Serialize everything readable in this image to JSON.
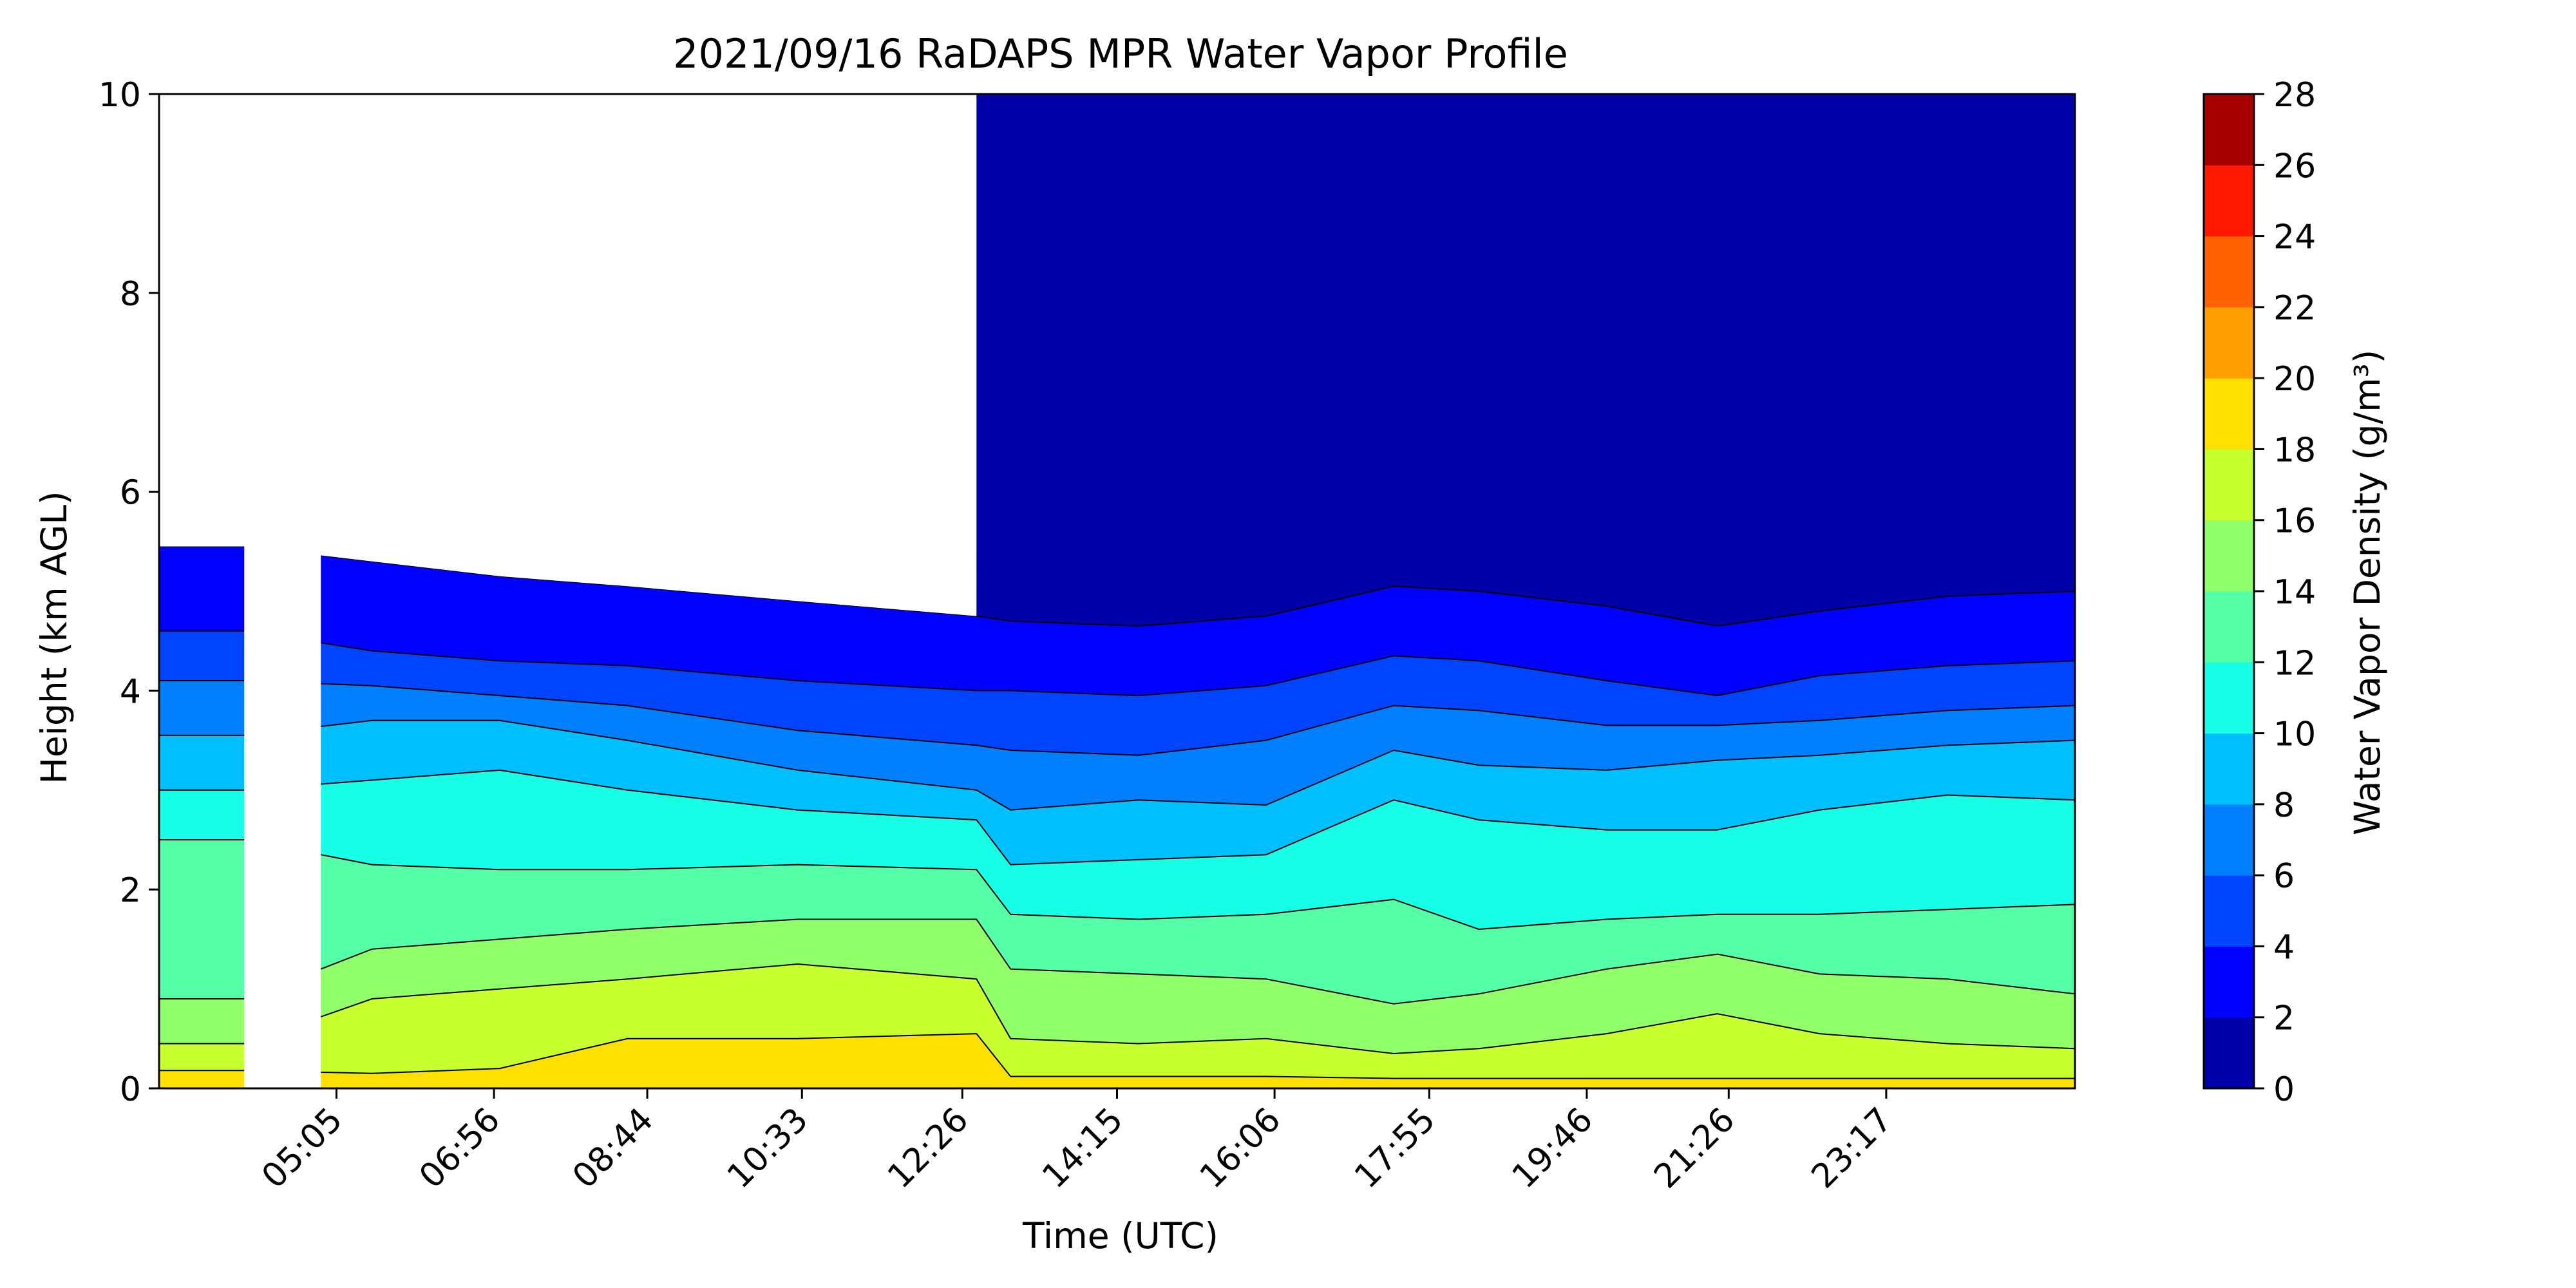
{
  "chart_data": {
    "type": "heatmap",
    "subtype": "filled-contour",
    "title": "2021/09/16 RaDAPS MPR Water Vapor Profile",
    "xlabel": "Time (UTC)",
    "ylabel": "Height (km AGL)",
    "ylim": [
      0,
      10
    ],
    "yticks": [
      0,
      2,
      4,
      6,
      8,
      10
    ],
    "xlim_hours": [
      3.0,
      25.5
    ],
    "xticks": [
      {
        "label": "05:05",
        "hour": 5.0833
      },
      {
        "label": "06:56",
        "hour": 6.9333
      },
      {
        "label": "08:44",
        "hour": 8.7333
      },
      {
        "label": "10:33",
        "hour": 10.55
      },
      {
        "label": "12:26",
        "hour": 12.4333
      },
      {
        "label": "14:15",
        "hour": 14.25
      },
      {
        "label": "16:06",
        "hour": 16.1
      },
      {
        "label": "17:55",
        "hour": 17.9167
      },
      {
        "label": "19:46",
        "hour": 19.7667
      },
      {
        "label": "21:26",
        "hour": 21.4333
      },
      {
        "label": "23:17",
        "hour": 23.2833
      }
    ],
    "colorbar": {
      "label": "Water Vapor Density (g/m³)",
      "levels": [
        0,
        2,
        4,
        6,
        8,
        10,
        12,
        14,
        16,
        18,
        20,
        22,
        24,
        26,
        28
      ],
      "colors": [
        "#0000a8",
        "#0000ff",
        "#0044ff",
        "#0080ff",
        "#00c0ff",
        "#18ffe8",
        "#55ffa8",
        "#90ff6a",
        "#c8ff2e",
        "#ffe000",
        "#ffa000",
        "#ff6000",
        "#ff1800",
        "#a80000"
      ]
    },
    "series": [
      {
        "hour": 3.0,
        "levels": [
          5.45,
          4.6,
          4.1,
          3.55,
          3.0,
          2.5,
          0.9,
          0.45,
          0.18
        ]
      },
      {
        "hour": 4.0,
        "levels": [
          5.45,
          4.6,
          4.1,
          3.55,
          3.0,
          2.5,
          0.9,
          0.45,
          0.18
        ]
      },
      {
        "hour": 5.5,
        "levels": [
          5.3,
          4.4,
          4.05,
          3.7,
          3.1,
          2.25,
          1.4,
          0.9,
          0.15
        ]
      },
      {
        "hour": 7.0,
        "levels": [
          5.15,
          4.3,
          3.95,
          3.7,
          3.2,
          2.2,
          1.5,
          1.0,
          0.2
        ]
      },
      {
        "hour": 8.5,
        "levels": [
          5.05,
          4.25,
          3.85,
          3.5,
          3.0,
          2.2,
          1.6,
          1.1,
          0.5
        ]
      },
      {
        "hour": 10.5,
        "levels": [
          4.9,
          4.1,
          3.6,
          3.2,
          2.8,
          2.25,
          1.7,
          1.25,
          0.5
        ]
      },
      {
        "hour": 12.6,
        "levels": [
          4.75,
          4.0,
          3.45,
          3.0,
          2.7,
          2.2,
          1.7,
          1.1,
          0.55
        ]
      },
      {
        "hour": 13.0,
        "levels": [
          4.7,
          4.0,
          3.4,
          2.8,
          2.25,
          1.75,
          1.2,
          0.5,
          0.12
        ]
      },
      {
        "hour": 14.5,
        "levels": [
          4.65,
          3.95,
          3.35,
          2.9,
          2.3,
          1.7,
          1.15,
          0.45,
          0.12
        ]
      },
      {
        "hour": 16.0,
        "levels": [
          4.75,
          4.05,
          3.5,
          2.85,
          2.35,
          1.75,
          1.1,
          0.5,
          0.12
        ]
      },
      {
        "hour": 17.5,
        "levels": [
          5.05,
          4.35,
          3.85,
          3.4,
          2.9,
          1.9,
          0.85,
          0.35,
          0.1
        ]
      },
      {
        "hour": 18.5,
        "levels": [
          5.0,
          4.3,
          3.8,
          3.25,
          2.7,
          1.6,
          0.95,
          0.4,
          0.1
        ]
      },
      {
        "hour": 20.0,
        "levels": [
          4.85,
          4.1,
          3.65,
          3.2,
          2.6,
          1.7,
          1.2,
          0.55,
          0.1
        ]
      },
      {
        "hour": 21.3,
        "levels": [
          4.65,
          3.95,
          3.65,
          3.3,
          2.6,
          1.75,
          1.35,
          0.75,
          0.1
        ]
      },
      {
        "hour": 22.5,
        "levels": [
          4.8,
          4.15,
          3.7,
          3.35,
          2.8,
          1.75,
          1.15,
          0.55,
          0.1
        ]
      },
      {
        "hour": 24.0,
        "levels": [
          4.95,
          4.25,
          3.8,
          3.45,
          2.95,
          1.8,
          1.1,
          0.45,
          0.1
        ]
      },
      {
        "hour": 25.5,
        "levels": [
          5.0,
          4.3,
          3.85,
          3.5,
          2.9,
          1.85,
          0.95,
          0.4,
          0.1
        ]
      }
    ],
    "missing_hours": [
      [
        4.0,
        4.9
      ]
    ],
    "partial_data_hours": [
      [
        3.0,
        12.6
      ]
    ]
  }
}
